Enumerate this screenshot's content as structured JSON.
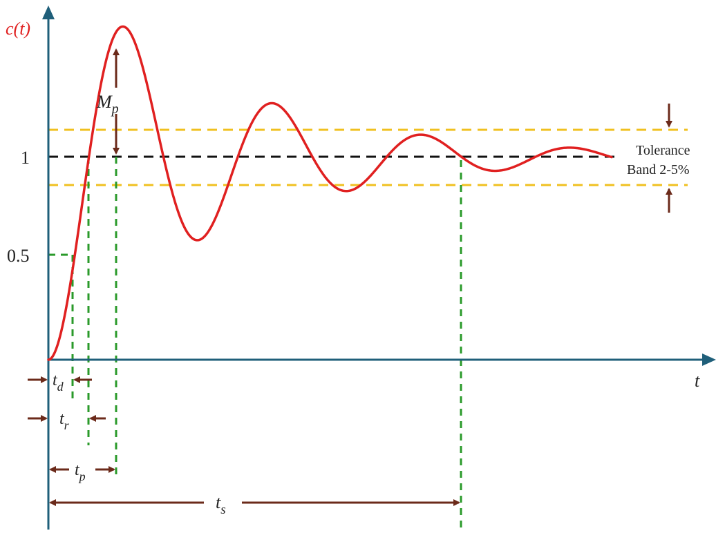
{
  "diagram": {
    "y_axis_label": "c(t)",
    "x_axis_label": "t",
    "y_ticks": [
      "1",
      "0.5"
    ],
    "annotations": {
      "overshoot": {
        "main": "M",
        "sub": "p"
      },
      "tolerance_line1": "Tolerance",
      "tolerance_line2": "Band 2-5%"
    },
    "time_labels": {
      "delay": {
        "main": "t",
        "sub": "d"
      },
      "rise": {
        "main": "t",
        "sub": "r"
      },
      "peak": {
        "main": "t",
        "sub": "p"
      },
      "settling": {
        "main": "t",
        "sub": "s"
      }
    }
  },
  "colors": {
    "axis": "#1f5f7a",
    "response_curve": "#e02020",
    "reference_line": "#111111",
    "tolerance_band": "#f0c020",
    "guide_lines": "#2a9a2a",
    "arrows": "#6b2a1a",
    "y_label": "#e02020",
    "text": "#222222"
  },
  "icons": {
    "axis_arrowheads": "triangle-arrowhead",
    "dimension_arrows": "arrow-icon"
  }
}
